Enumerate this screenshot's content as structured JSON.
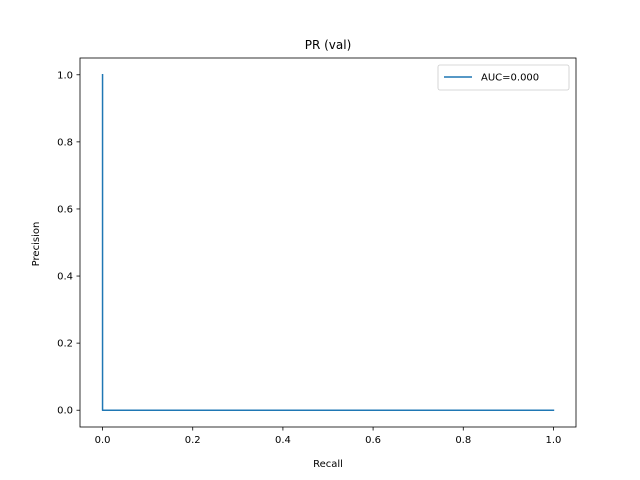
{
  "chart_data": {
    "type": "line",
    "title": "PR (val)",
    "xlabel": "Recall",
    "ylabel": "Precision",
    "xlim": [
      -0.05,
      1.05
    ],
    "ylim": [
      -0.05,
      1.05
    ],
    "xticks": [
      0.0,
      0.2,
      0.4,
      0.6,
      0.8,
      1.0
    ],
    "yticks": [
      0.0,
      0.2,
      0.4,
      0.6,
      0.8,
      1.0
    ],
    "xtick_labels": [
      "0.0",
      "0.2",
      "0.4",
      "0.6",
      "0.8",
      "1.0"
    ],
    "ytick_labels": [
      "0.0",
      "0.2",
      "0.4",
      "0.6",
      "0.8",
      "1.0"
    ],
    "grid": false,
    "legend_position": "top-right",
    "series": [
      {
        "name": "AUC=0.000",
        "color": "#1f77b4",
        "x": [
          0.0,
          0.0,
          1.0
        ],
        "y": [
          1.0,
          0.0,
          0.0
        ]
      }
    ]
  }
}
